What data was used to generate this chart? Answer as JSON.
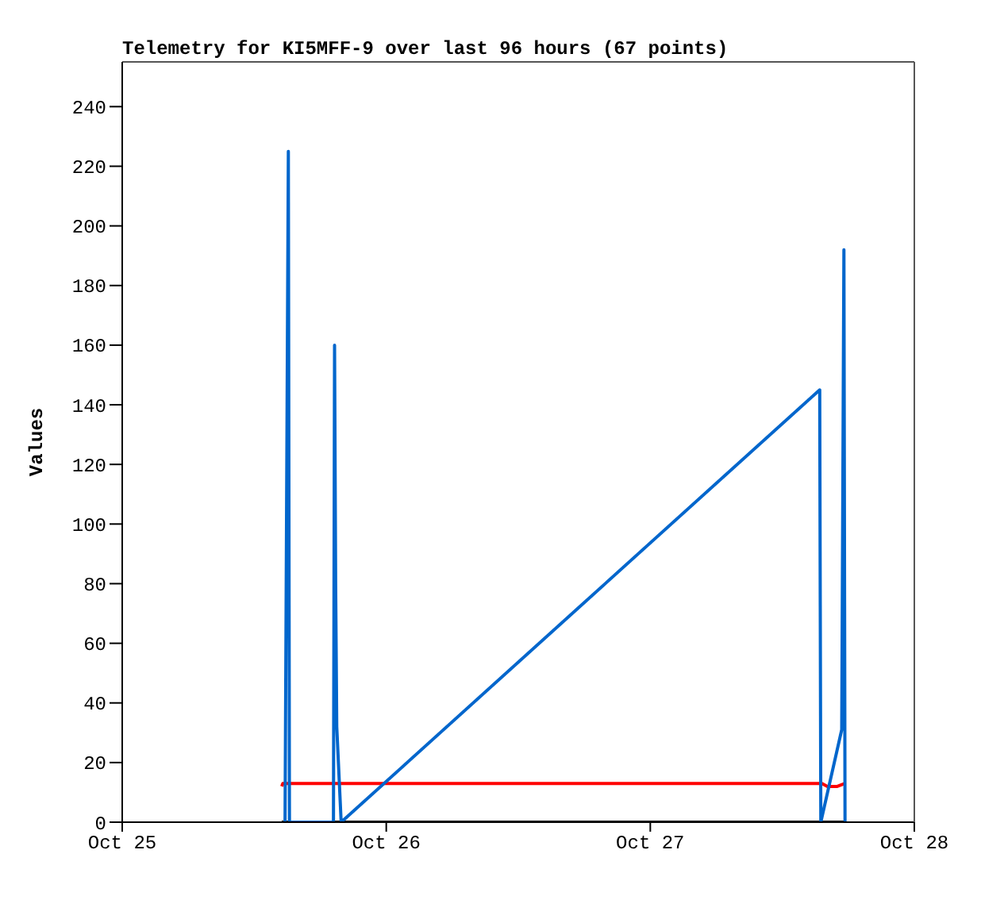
{
  "chart_data": {
    "type": "line",
    "title": "Telemetry for KI5MFF-9 over last 96 hours (67 points)",
    "ylabel": "Values",
    "xlim": [
      "--10-25",
      "--10-28"
    ],
    "xticks": [
      {
        "value": "--10-25",
        "label": "Oct 25"
      },
      {
        "value": "--10-26",
        "label": "Oct 26"
      },
      {
        "value": "--10-27",
        "label": "Oct 27"
      },
      {
        "value": "--10-28",
        "label": "Oct 28"
      }
    ],
    "ylim": [
      0,
      255
    ],
    "yticks": [
      0,
      20,
      40,
      60,
      80,
      100,
      120,
      140,
      160,
      180,
      200,
      220,
      240
    ],
    "marker": "none",
    "line_style": "solid",
    "series": [
      {
        "color": "#000000",
        "x": [
          "--10-25T14:30",
          "--10-27T17:42"
        ],
        "values": [
          0,
          0
        ]
      },
      {
        "color": "#ff0000",
        "x": [
          "--10-25T14:30",
          "--10-25T14:36",
          "--10-27T15:36",
          "--10-27T16:06",
          "--10-27T17:00",
          "--10-27T17:42"
        ],
        "values": [
          12,
          13,
          13,
          12,
          12,
          13
        ]
      },
      {
        "color": "#0066cc",
        "x": [
          "--10-25T14:48",
          "--10-25T15:06",
          "--10-25T15:12",
          "--10-25T19:12",
          "--10-25T19:18",
          "--10-25T19:24",
          "--10-25T19:30",
          "--10-25T19:54",
          "--10-27T15:24",
          "--10-27T15:30",
          "--10-27T17:24",
          "--10-27T17:36",
          "--10-27T17:42"
        ],
        "values": [
          0,
          225,
          0,
          0,
          160,
          80,
          32,
          0,
          145,
          0,
          31,
          192,
          0
        ]
      }
    ]
  }
}
